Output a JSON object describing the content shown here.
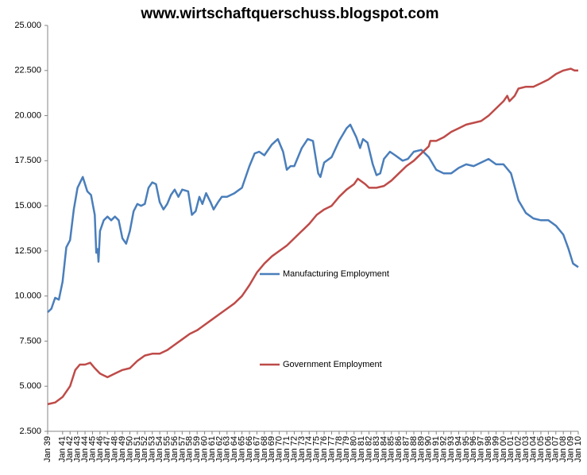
{
  "chart_data": {
    "type": "line",
    "title": "www.wirtschaftquerschuss.blogspot.com",
    "xlim": [
      1939,
      2010
    ],
    "xticks": [
      {
        "value": 1939,
        "label": "Jan 39"
      },
      {
        "value": 1941,
        "label": "Jan 41"
      },
      {
        "value": 1942,
        "label": "Jan 42"
      },
      {
        "value": 1943,
        "label": "Jan 43"
      },
      {
        "value": 1944,
        "label": "Jan 44"
      },
      {
        "value": 1945,
        "label": "Jan 45"
      },
      {
        "value": 1946,
        "label": "Jan 46"
      },
      {
        "value": 1947,
        "label": "Jan 47"
      },
      {
        "value": 1948,
        "label": "Jan 48"
      },
      {
        "value": 1949,
        "label": "Jan 49"
      },
      {
        "value": 1950,
        "label": "Jan 50"
      },
      {
        "value": 1951,
        "label": "Jan 51"
      },
      {
        "value": 1952,
        "label": "Jan 52"
      },
      {
        "value": 1953,
        "label": "Jan 53"
      },
      {
        "value": 1954,
        "label": "Jan 54"
      },
      {
        "value": 1955,
        "label": "Jan 55"
      },
      {
        "value": 1956,
        "label": "Jan 56"
      },
      {
        "value": 1957,
        "label": "Jan 57"
      },
      {
        "value": 1958,
        "label": "Jan 58"
      },
      {
        "value": 1959,
        "label": "Jan 59"
      },
      {
        "value": 1960,
        "label": "Jan 60"
      },
      {
        "value": 1961,
        "label": "Jan 61"
      },
      {
        "value": 1962,
        "label": "Jan 62"
      },
      {
        "value": 1963,
        "label": "Jan 63"
      },
      {
        "value": 1964,
        "label": "Jan 64"
      },
      {
        "value": 1965,
        "label": "Jan 65"
      },
      {
        "value": 1966,
        "label": "Jan 66"
      },
      {
        "value": 1967,
        "label": "Jan 67"
      },
      {
        "value": 1968,
        "label": "Jan 68"
      },
      {
        "value": 1969,
        "label": "Jan 69"
      },
      {
        "value": 1970,
        "label": "Jan 70"
      },
      {
        "value": 1971,
        "label": "Jan 71"
      },
      {
        "value": 1972,
        "label": "Jan 72"
      },
      {
        "value": 1973,
        "label": "Jan 73"
      },
      {
        "value": 1974,
        "label": "Jan 74"
      },
      {
        "value": 1975,
        "label": "Jan 75"
      },
      {
        "value": 1976,
        "label": "Jan 76"
      },
      {
        "value": 1977,
        "label": "Jan 77"
      },
      {
        "value": 1978,
        "label": "Jan 78"
      },
      {
        "value": 1979,
        "label": "Jan 79"
      },
      {
        "value": 1980,
        "label": "Jan 80"
      },
      {
        "value": 1981,
        "label": "Jan 81"
      },
      {
        "value": 1982,
        "label": "Jan 82"
      },
      {
        "value": 1983,
        "label": "Jan 83"
      },
      {
        "value": 1984,
        "label": "Jan 84"
      },
      {
        "value": 1985,
        "label": "Jan 85"
      },
      {
        "value": 1986,
        "label": "Jan 86"
      },
      {
        "value": 1987,
        "label": "Jan 87"
      },
      {
        "value": 1988,
        "label": "Jan 88"
      },
      {
        "value": 1989,
        "label": "Jan 89"
      },
      {
        "value": 1990,
        "label": "Jan 90"
      },
      {
        "value": 1991,
        "label": "Jan 91"
      },
      {
        "value": 1992,
        "label": "Jan 92"
      },
      {
        "value": 1993,
        "label": "Jan 93"
      },
      {
        "value": 1994,
        "label": "Jan 94"
      },
      {
        "value": 1995,
        "label": "Jan 95"
      },
      {
        "value": 1996,
        "label": "Jan 96"
      },
      {
        "value": 1997,
        "label": "Jan 97"
      },
      {
        "value": 1998,
        "label": "Jan 98"
      },
      {
        "value": 1999,
        "label": "Jan 99"
      },
      {
        "value": 2000,
        "label": "Jan 00"
      },
      {
        "value": 2001,
        "label": "Jan 01"
      },
      {
        "value": 2002,
        "label": "Jan 02"
      },
      {
        "value": 2003,
        "label": "Jan 03"
      },
      {
        "value": 2004,
        "label": "Jan 04"
      },
      {
        "value": 2005,
        "label": "Jan 05"
      },
      {
        "value": 2006,
        "label": "Jan 06"
      },
      {
        "value": 2007,
        "label": "Jan 07"
      },
      {
        "value": 2008,
        "label": "Jan 08"
      },
      {
        "value": 2009,
        "label": "Jan 09"
      },
      {
        "value": 2010,
        "label": "Jan 10"
      }
    ],
    "ylim": [
      2500,
      25000
    ],
    "yticks": [
      {
        "value": 2500,
        "label": "2.500"
      },
      {
        "value": 5000,
        "label": "5.000"
      },
      {
        "value": 7500,
        "label": "7.500"
      },
      {
        "value": 10000,
        "label": "10.000"
      },
      {
        "value": 12500,
        "label": "12.500"
      },
      {
        "value": 15000,
        "label": "15.000"
      },
      {
        "value": 17500,
        "label": "17.500"
      },
      {
        "value": 20000,
        "label": "20.000"
      },
      {
        "value": 22500,
        "label": "22.500"
      },
      {
        "value": 25000,
        "label": "25.000"
      }
    ],
    "grid": false,
    "series": [
      {
        "name": "Manufacturing Employment",
        "color": "#4a7ebb",
        "x": [
          1939,
          1939.5,
          1940,
          1940.5,
          1941,
          1941.5,
          1942,
          1942.5,
          1943,
          1943.7,
          1944.3,
          1944.8,
          1945.3,
          1945.5,
          1945.7,
          1945.8,
          1946,
          1946.5,
          1947,
          1947.5,
          1948,
          1948.5,
          1949,
          1949.5,
          1950,
          1950.5,
          1951,
          1951.5,
          1952,
          1952.5,
          1953,
          1953.5,
          1954,
          1954.5,
          1955,
          1955.5,
          1956,
          1956.5,
          1957,
          1957.8,
          1958.3,
          1958.8,
          1959.3,
          1959.7,
          1960.2,
          1960.8,
          1961.2,
          1961.8,
          1962.3,
          1963,
          1964,
          1965,
          1966,
          1966.7,
          1967.3,
          1968,
          1969,
          1969.8,
          1970.5,
          1971,
          1971.5,
          1972,
          1973,
          1973.8,
          1974.5,
          1975.2,
          1975.5,
          1976,
          1977,
          1978,
          1979,
          1979.5,
          1980.3,
          1980.8,
          1981.2,
          1981.8,
          1982.5,
          1983,
          1983.5,
          1984,
          1984.8,
          1985.5,
          1986.5,
          1987.2,
          1988,
          1989,
          1990,
          1991,
          1992,
          1993,
          1994,
          1995,
          1996,
          1997,
          1998,
          1999,
          2000,
          2001,
          2002,
          2003,
          2004,
          2005,
          2006,
          2007,
          2008,
          2008.7,
          2009.3,
          2010
        ],
        "values": [
          9100,
          9300,
          9900,
          9800,
          10800,
          12700,
          13100,
          14800,
          16000,
          16600,
          15800,
          15600,
          14500,
          12400,
          12600,
          11900,
          13600,
          14200,
          14400,
          14200,
          14400,
          14200,
          13200,
          12900,
          13600,
          14700,
          15100,
          15000,
          15100,
          16000,
          16300,
          16200,
          15200,
          14800,
          15100,
          15600,
          15900,
          15500,
          15900,
          15800,
          14500,
          14700,
          15500,
          15100,
          15700,
          15200,
          14800,
          15200,
          15500,
          15500,
          15700,
          16000,
          17200,
          17900,
          18000,
          17800,
          18400,
          18700,
          18000,
          17000,
          17200,
          17200,
          18200,
          18700,
          18600,
          16800,
          16600,
          17400,
          17700,
          18600,
          19300,
          19500,
          18800,
          18200,
          18700,
          18500,
          17300,
          16700,
          16800,
          17600,
          18000,
          17800,
          17500,
          17600,
          18000,
          18100,
          17700,
          17000,
          16800,
          16800,
          17100,
          17300,
          17200,
          17400,
          17600,
          17300,
          17300,
          16800,
          15300,
          14600,
          14300,
          14200,
          14200,
          13900,
          13400,
          12600,
          11800,
          11600
        ]
      },
      {
        "name": "Government Employment",
        "color": "#be4b48",
        "x": [
          1939,
          1940,
          1941,
          1942,
          1942.7,
          1943.3,
          1944,
          1944.7,
          1945.3,
          1946,
          1947,
          1948,
          1949,
          1950,
          1951,
          1952,
          1953,
          1954,
          1955,
          1956,
          1957,
          1958,
          1959,
          1960,
          1961,
          1962,
          1963,
          1964,
          1965,
          1966,
          1967,
          1968,
          1969,
          1970,
          1971,
          1972,
          1973,
          1974,
          1975,
          1976,
          1977,
          1978,
          1979,
          1980,
          1980.5,
          1981.5,
          1982,
          1983,
          1984,
          1985,
          1986,
          1987,
          1988,
          1989,
          1990,
          1990.2,
          1991,
          1992,
          1993,
          1994,
          1995,
          1996,
          1997,
          1998,
          1999,
          2000,
          2000.5,
          2000.8,
          2001.5,
          2002,
          2003,
          2004,
          2005,
          2006,
          2007,
          2008,
          2009,
          2009.5,
          2010
        ],
        "values": [
          4000,
          4100,
          4400,
          5000,
          5900,
          6200,
          6200,
          6300,
          6000,
          5700,
          5500,
          5700,
          5900,
          6000,
          6400,
          6700,
          6800,
          6800,
          7000,
          7300,
          7600,
          7900,
          8100,
          8400,
          8700,
          9000,
          9300,
          9600,
          10000,
          10600,
          11300,
          11800,
          12200,
          12500,
          12800,
          13200,
          13600,
          14000,
          14500,
          14800,
          15000,
          15500,
          15900,
          16200,
          16500,
          16200,
          16000,
          16000,
          16100,
          16400,
          16800,
          17200,
          17500,
          17900,
          18300,
          18600,
          18600,
          18800,
          19100,
          19300,
          19500,
          19600,
          19700,
          20000,
          20400,
          20800,
          21100,
          20800,
          21100,
          21500,
          21600,
          21600,
          21800,
          22000,
          22300,
          22500,
          22600,
          22500,
          22500
        ]
      }
    ]
  }
}
